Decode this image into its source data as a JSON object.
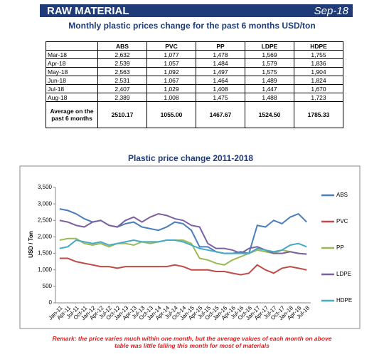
{
  "header": {
    "title": "RAW MATERIAL",
    "date": "Sep-18"
  },
  "subtitle": "Monthly plastic prices change for the past 6 months USD/ton",
  "table": {
    "columns": [
      "ABS",
      "PVC",
      "PP",
      "LDPE",
      "HDPE"
    ],
    "rows": [
      {
        "label": "Mar-18",
        "cells": [
          "2,632",
          "1,077",
          "1,478",
          "1,569",
          "1,755"
        ]
      },
      {
        "label": "Apr-18",
        "cells": [
          "2,539",
          "1,057",
          "1,484",
          "1,579",
          "1,836"
        ]
      },
      {
        "label": "May-18",
        "cells": [
          "2,563",
          "1,092",
          "1,497",
          "1,575",
          "1,904"
        ]
      },
      {
        "label": "Jun-18",
        "cells": [
          "2,531",
          "1,067",
          "1,464",
          "1,489",
          "1,824"
        ]
      },
      {
        "label": "Jul-18",
        "cells": [
          "2,407",
          "1,029",
          "1,408",
          "1,447",
          "1,670"
        ]
      },
      {
        "label": "Aug-18",
        "cells": [
          "2,389",
          "1,008",
          "1,475",
          "1,488",
          "1,723"
        ]
      },
      {
        "label": "Average on the past 6 months",
        "cells": [
          "2510.17",
          "1055.00",
          "1467.67",
          "1524.50",
          "1785.33"
        ]
      }
    ]
  },
  "chart_data": {
    "type": "line",
    "title": "Plastic price change 2011-2018",
    "y_label": "USD / Ton",
    "categories": [
      "Jan-11",
      "Apr-11",
      "Jul-11",
      "Oct-11",
      "Jan-12",
      "Apr-12",
      "Jul-12",
      "Oct-12",
      "Jan-13",
      "Apr-13",
      "Jul-13",
      "Oct-13",
      "Jan-14",
      "Apr-14",
      "Jul-14",
      "Oct-14",
      "Jan-15",
      "Apr-15",
      "Jul-15",
      "Oct-15",
      "Jan-16",
      "Apr-16",
      "Jul-16",
      "Oct-16",
      "Jan-17",
      "Apr-17",
      "Jul-17",
      "Oct-17",
      "Jan-18",
      "Apr-18",
      "Jul-18"
    ],
    "series": [
      {
        "name": "ABS",
        "color": "#4a7ebb",
        "values": [
          2850,
          2800,
          2700,
          2550,
          2450,
          2500,
          2350,
          2300,
          2400,
          2450,
          2300,
          2250,
          2200,
          2300,
          2450,
          2400,
          2200,
          1700,
          1700,
          1550,
          1500,
          1500,
          1550,
          1500,
          2350,
          2300,
          2500,
          2400,
          2600,
          2700,
          2450
        ]
      },
      {
        "name": "PVC",
        "color": "#be4b48",
        "values": [
          1350,
          1350,
          1250,
          1200,
          1150,
          1100,
          1100,
          1050,
          1100,
          1100,
          1100,
          1100,
          1100,
          1100,
          1150,
          1100,
          1000,
          1000,
          1000,
          950,
          950,
          900,
          850,
          900,
          1150,
          1000,
          900,
          1050,
          1100,
          1050,
          1000
        ]
      },
      {
        "name": "PP",
        "color": "#98b954",
        "values": [
          1900,
          1950,
          1950,
          1800,
          1750,
          1800,
          1700,
          1800,
          1800,
          1750,
          1850,
          1800,
          1850,
          1900,
          1900,
          1900,
          1800,
          1350,
          1300,
          1200,
          1150,
          1300,
          1400,
          1500,
          1600,
          1550,
          1500,
          1600,
          1550,
          1500,
          1475
        ]
      },
      {
        "name": "LDPE",
        "color": "#7d60a0",
        "values": [
          2500,
          2450,
          2350,
          2300,
          2450,
          2500,
          2350,
          2300,
          2500,
          2600,
          2450,
          2600,
          2700,
          2650,
          2550,
          2500,
          2350,
          2300,
          1800,
          1650,
          1650,
          1600,
          1500,
          1650,
          1700,
          1600,
          1500,
          1500,
          1550,
          1500,
          1480
        ]
      },
      {
        "name": "HDPE",
        "color": "#46aac5",
        "values": [
          1650,
          1700,
          1900,
          1850,
          1800,
          1850,
          1750,
          1800,
          1850,
          1900,
          1850,
          1850,
          1850,
          1900,
          1900,
          1850,
          1750,
          1650,
          1600,
          1550,
          1500,
          1500,
          1500,
          1500,
          1650,
          1600,
          1550,
          1600,
          1750,
          1800,
          1700
        ]
      }
    ],
    "ylim": [
      0,
      3500
    ],
    "yticks": [
      0,
      500,
      {
        "value": 1000,
        "label": "1,000"
      },
      {
        "value": 1500,
        "label": "1,500"
      },
      {
        "value": 2000,
        "label": "2,000"
      },
      {
        "value": 2500,
        "label": "2,500"
      },
      {
        "value": 3000,
        "label": "3,000"
      },
      {
        "value": 3500,
        "label": "3,500"
      }
    ],
    "grid": false,
    "legend": "right"
  },
  "remark": "Remark: the price varies much within one month, but the average values of each month on above table was little falling this month for most of materials"
}
